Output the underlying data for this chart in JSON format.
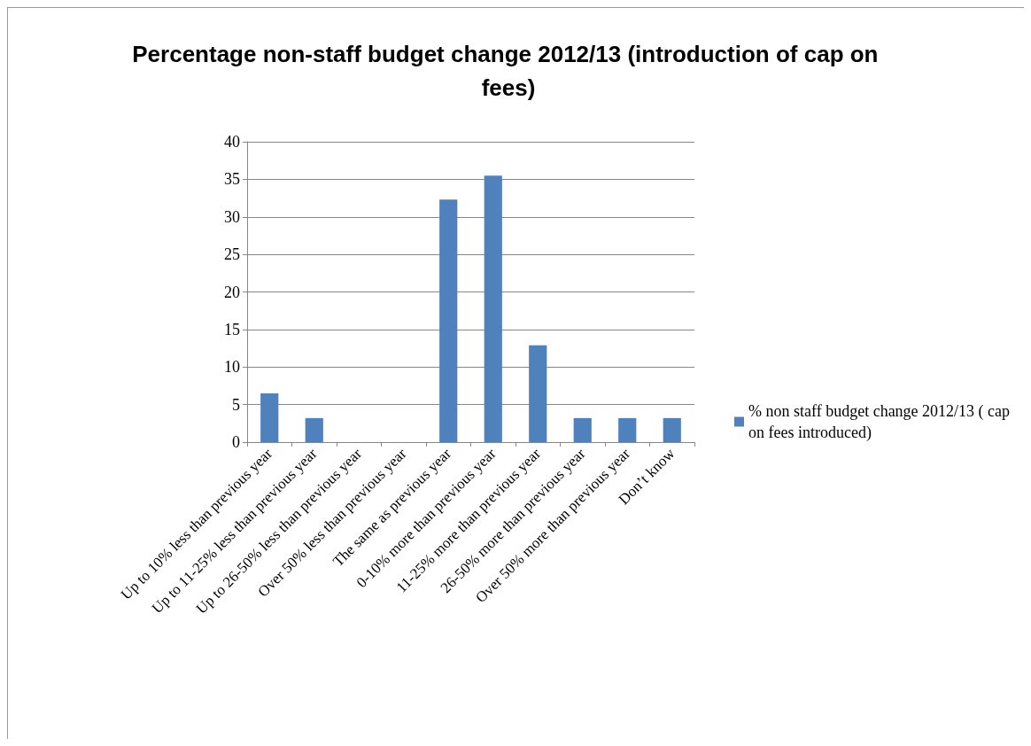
{
  "chart_data": {
    "type": "bar",
    "title": "Percentage non-staff budget change 2012/13 (introduction of cap on fees)",
    "categories": [
      "Up to 10% less than previous year",
      "Up to 11-25% less than previous year",
      "Up to 26-50% less than previous year",
      "Over 50% less than previous year",
      "The same as previous year",
      "0-10% more than previous year",
      "11-25% more than previous year",
      "26-50% more than previous year",
      "Over 50% more than previous year",
      "Don’t know"
    ],
    "series": [
      {
        "name": "% non staff budget change 2012/13 ( cap on fees introduced)",
        "color": "#4f81bd",
        "values": [
          6.5,
          3.2,
          0,
          0,
          32.3,
          35.5,
          12.9,
          3.2,
          3.2,
          3.2
        ]
      }
    ],
    "ylim": [
      0,
      40
    ],
    "yticks": [
      0,
      5,
      10,
      15,
      20,
      25,
      30,
      35,
      40
    ],
    "grid": "y",
    "legend": "right"
  }
}
